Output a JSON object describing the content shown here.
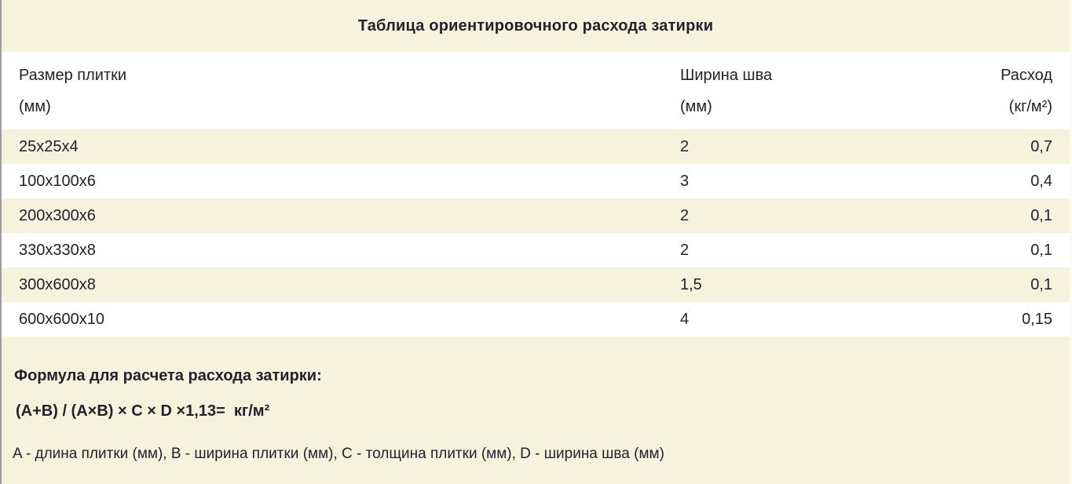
{
  "title": "Таблица ориентировочного расхода затирки",
  "table": {
    "columns": [
      {
        "label": "Размер плитки",
        "unit": "(мм)"
      },
      {
        "label": "Ширина шва",
        "unit": "(мм)"
      },
      {
        "label": "Расход",
        "unit": "(кг/м²)"
      }
    ],
    "rows": [
      {
        "size": "25x25x4",
        "joint_width": "2",
        "consumption": "0,7"
      },
      {
        "size": "100x100x6",
        "joint_width": "3",
        "consumption": "0,4"
      },
      {
        "size": "200x300x6",
        "joint_width": "2",
        "consumption": "0,1"
      },
      {
        "size": "330x330x8",
        "joint_width": "2",
        "consumption": "0,1"
      },
      {
        "size": "300x600x8",
        "joint_width": "1,5",
        "consumption": "0,1"
      },
      {
        "size": "600x600x10",
        "joint_width": "4",
        "consumption": "0,15"
      }
    ]
  },
  "footer": {
    "formula_heading": "Формула для расчета расхода затирки:",
    "formula": "(A+B) / (A×B) × C × D ×1,13=  кг/м²",
    "legend": "A - длина плитки (мм), B - ширина плитки (мм), C - толщина плитки (мм), D - ширина шва (мм)"
  },
  "colors": {
    "cream_band": "#f5f2de",
    "white_band": "#ffffff",
    "text": "#25212c",
    "left_border": "#9e9e9e"
  }
}
